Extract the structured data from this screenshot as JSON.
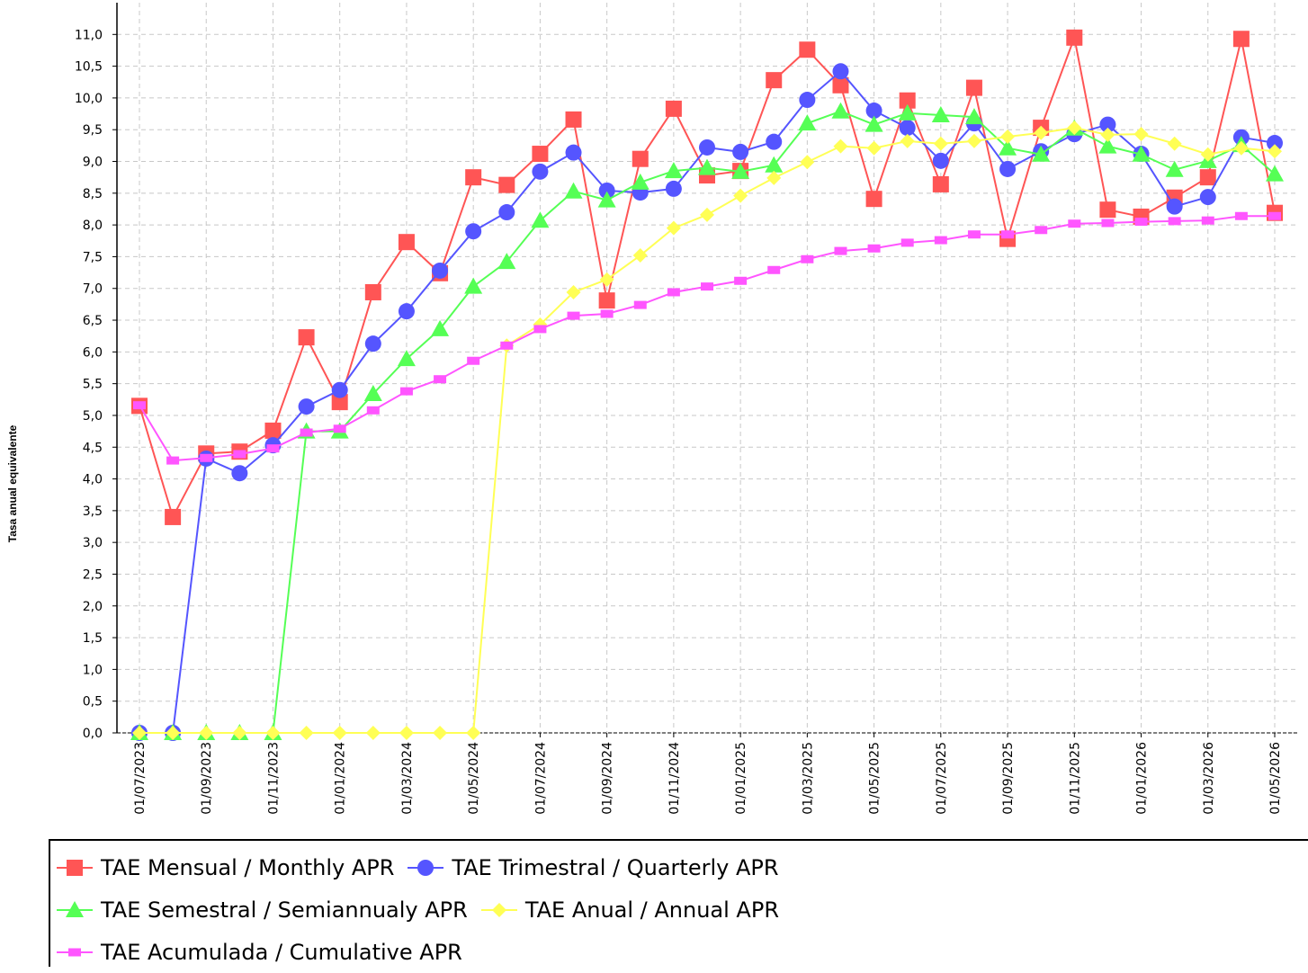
{
  "chart_data": {
    "type": "line",
    "y_label": "Tasa anual equivalente",
    "categories": [
      "01/07/2023",
      null,
      "01/09/2023",
      null,
      "01/11/2023",
      null,
      "01/01/2024",
      null,
      "01/03/2024",
      null,
      "01/05/2024",
      null,
      "01/07/2024",
      null,
      "01/09/2024",
      null,
      "01/11/2024",
      null,
      "01/01/2025",
      null,
      "01/03/2025",
      null,
      "01/05/2025",
      null,
      "01/07/2025",
      null,
      "01/09/2025",
      null,
      "01/11/2025",
      null,
      "01/01/2026",
      null,
      "01/03/2026",
      null,
      "01/05/2026"
    ],
    "series": [
      {
        "name": "TAE Mensual / Monthly APR",
        "color": "#ff5555",
        "marker": "square",
        "values": [
          5.15,
          3.4,
          4.4,
          4.43,
          4.76,
          6.23,
          5.21,
          6.94,
          7.73,
          7.24,
          8.75,
          8.63,
          9.12,
          9.66,
          6.81,
          9.04,
          9.83,
          8.78,
          8.85,
          10.28,
          10.76,
          10.2,
          8.41,
          9.96,
          8.64,
          10.16,
          7.78,
          9.53,
          10.95,
          8.24,
          8.13,
          8.43,
          8.75,
          10.93,
          8.19
        ]
      },
      {
        "name": "TAE Trimestral / Quarterly APR",
        "color": "#5555ff",
        "marker": "circle",
        "values": [
          0,
          0,
          4.32,
          4.09,
          4.53,
          5.14,
          5.4,
          6.13,
          6.64,
          7.28,
          7.9,
          8.2,
          8.84,
          9.14,
          8.54,
          8.51,
          8.57,
          9.22,
          9.15,
          9.31,
          9.97,
          10.42,
          9.8,
          9.53,
          9.01,
          9.6,
          8.88,
          9.16,
          9.43,
          9.58,
          9.12,
          8.29,
          8.44,
          9.38,
          9.29
        ]
      },
      {
        "name": "TAE Semestral / Semiannualy APR",
        "color": "#55ff55",
        "marker": "triangle",
        "values": [
          0,
          0,
          0,
          0,
          0,
          4.75,
          4.75,
          5.34,
          5.89,
          6.36,
          7.03,
          7.42,
          8.07,
          8.53,
          8.39,
          8.67,
          8.85,
          8.9,
          8.84,
          8.94,
          9.6,
          9.79,
          9.58,
          9.76,
          9.73,
          9.7,
          9.21,
          9.11,
          9.52,
          9.24,
          9.11,
          8.87,
          9.01,
          9.26,
          8.8
        ]
      },
      {
        "name": "TAE Anual / Annual APR",
        "color": "#ffff55",
        "marker": "diamond",
        "values": [
          0,
          0,
          0,
          0,
          0,
          0,
          0,
          0,
          0,
          0,
          0,
          6.1,
          6.43,
          6.94,
          7.14,
          7.52,
          7.95,
          8.16,
          8.46,
          8.74,
          8.99,
          9.24,
          9.21,
          9.32,
          9.28,
          9.32,
          9.39,
          9.45,
          9.53,
          9.42,
          9.43,
          9.28,
          9.11,
          9.21,
          9.16
        ]
      },
      {
        "name": "TAE Acumulada / Cumulative APR",
        "color": "#ff55ff",
        "marker": "rect",
        "values": [
          5.16,
          4.29,
          4.33,
          4.39,
          4.48,
          4.73,
          4.79,
          5.08,
          5.38,
          5.57,
          5.86,
          6.1,
          6.36,
          6.57,
          6.6,
          6.74,
          6.94,
          7.03,
          7.12,
          7.29,
          7.46,
          7.59,
          7.63,
          7.72,
          7.76,
          7.85,
          7.85,
          7.92,
          8.02,
          8.03,
          8.05,
          8.06,
          8.07,
          8.14,
          8.14
        ]
      }
    ],
    "ylim": [
      0,
      11.5
    ],
    "yticks": [
      {
        "value": 0,
        "label": "0,0"
      },
      {
        "value": 0.5,
        "label": "0,5"
      },
      {
        "value": 1,
        "label": "1,0"
      },
      {
        "value": 1.5,
        "label": "1,5"
      },
      {
        "value": 2,
        "label": "2,0"
      },
      {
        "value": 2.5,
        "label": "2,5"
      },
      {
        "value": 3,
        "label": "3,0"
      },
      {
        "value": 3.5,
        "label": "3,5"
      },
      {
        "value": 4,
        "label": "4,0"
      },
      {
        "value": 4.5,
        "label": "4,5"
      },
      {
        "value": 5,
        "label": "5,0"
      },
      {
        "value": 5.5,
        "label": "5,5"
      },
      {
        "value": 6,
        "label": "6,0"
      },
      {
        "value": 6.5,
        "label": "6,5"
      },
      {
        "value": 7,
        "label": "7,0"
      },
      {
        "value": 7.5,
        "label": "7,5"
      },
      {
        "value": 8,
        "label": "8,0"
      },
      {
        "value": 8.5,
        "label": "8,5"
      },
      {
        "value": 9,
        "label": "9,0"
      },
      {
        "value": 9.5,
        "label": "9,5"
      },
      {
        "value": 10,
        "label": "10,0"
      },
      {
        "value": 10.5,
        "label": "10,5"
      },
      {
        "value": 11,
        "label": "11,0"
      }
    ],
    "grid": true,
    "legend": "bottom"
  }
}
